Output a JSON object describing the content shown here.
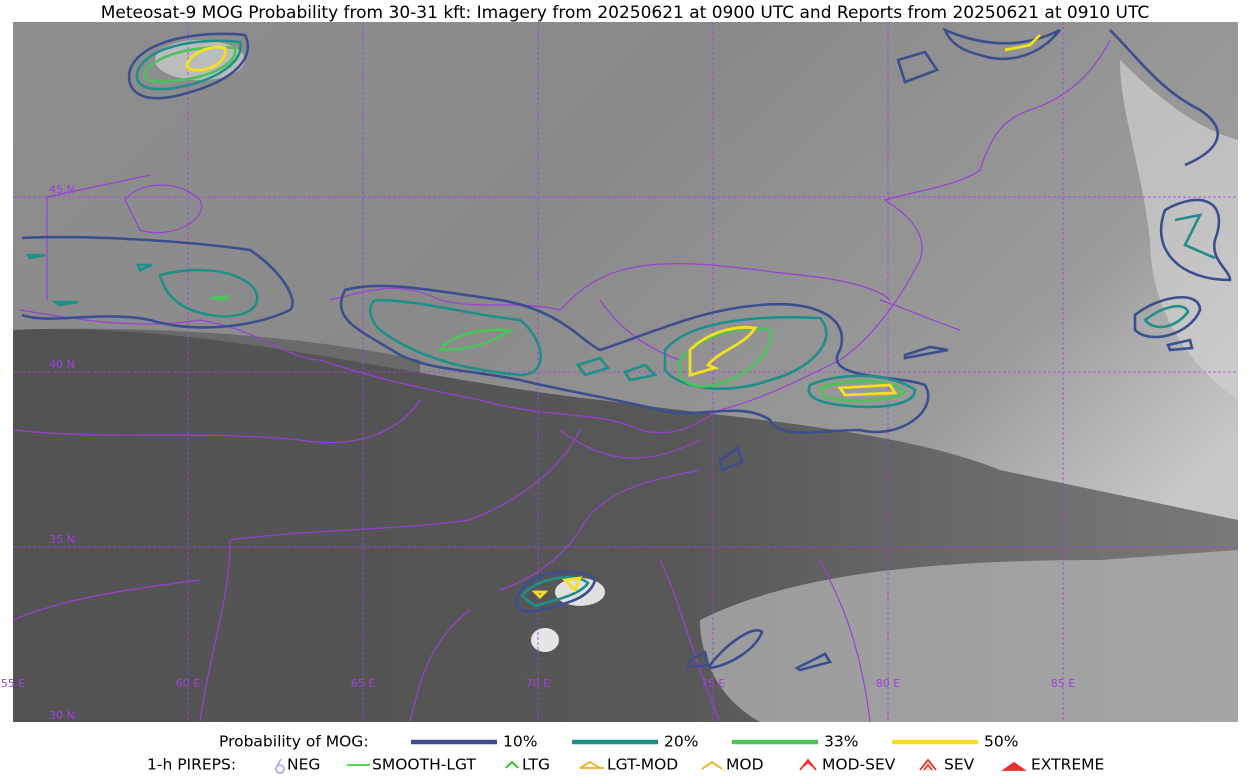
{
  "title": "Meteosat-9 MOG Probability from 30-31 kft: Imagery from 20250621 at 0900 UTC and Reports from 20250621 at 0910 UTC",
  "map": {
    "lat_labels": [
      "45 N",
      "40 N",
      "35 N",
      "30 N"
    ],
    "lon_labels": [
      "55 E",
      "60 E",
      "65 E",
      "70 E",
      "75 E",
      "80 E",
      "85 E"
    ]
  },
  "legend": {
    "mog_label": "Probability of MOG:",
    "mog_levels": [
      {
        "label": "10%",
        "color": "#3b4f8f"
      },
      {
        "label": "20%",
        "color": "#1f8f8a"
      },
      {
        "label": "33%",
        "color": "#4cc35a"
      },
      {
        "label": "50%",
        "color": "#f5e020"
      }
    ],
    "pireps_label": "1-h PIREPS:",
    "pireps": [
      {
        "label": "NEG",
        "color": "#b0b0f0"
      },
      {
        "label": "SMOOTH-LGT",
        "color": "#40d040"
      },
      {
        "label": "LTG",
        "color": "#20c020"
      },
      {
        "label": "LGT-MOD",
        "color": "#f0b020"
      },
      {
        "label": "MOD",
        "color": "#f0b020"
      },
      {
        "label": "MOD-SEV",
        "color": "#f03030"
      },
      {
        "label": "SEV",
        "color": "#f03030"
      },
      {
        "label": "EXTREME",
        "color": "#f03030"
      }
    ]
  }
}
